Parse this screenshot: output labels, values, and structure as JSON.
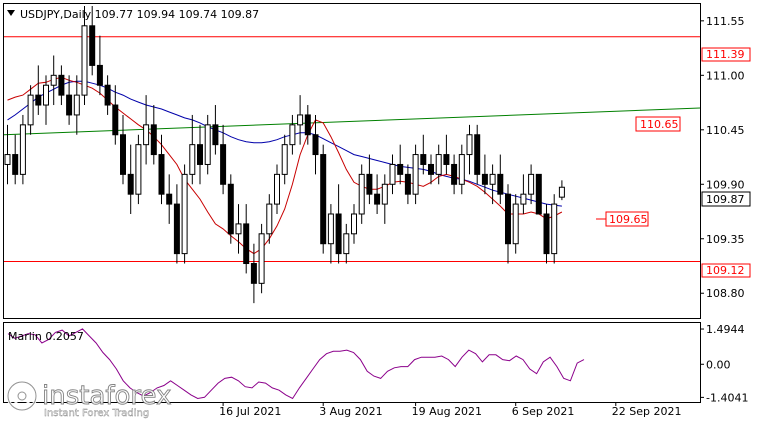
{
  "header": {
    "symbol_line": "USDJPY,Daily  109.77 109.94 109.74 109.87"
  },
  "watermark": {
    "brand": "instaforex",
    "tagline": "Instant Forex Trading"
  },
  "colors": {
    "background": "#ffffff",
    "frame": "#000000",
    "candle_bull": "#ffffff",
    "candle_bear": "#000000",
    "level_line": "#ff0000",
    "ma_fast": "#c80000",
    "ma_mid": "#0000aa",
    "ma_slow": "#008000",
    "marlin": "#8b008b",
    "grid": "#c0c0c0"
  },
  "chart_data": [
    {
      "type": "candlestick",
      "title": "USDJPY,Daily",
      "ohlc_label": "109.77 109.94 109.74 109.87",
      "ylim": [
        108.55,
        111.72
      ],
      "y_ticks": [
        111.55,
        111.0,
        110.45,
        109.9,
        109.35,
        108.8
      ],
      "y_tick_labels": [
        "111.55",
        "111.00",
        "110.45",
        "109.90",
        "109.35",
        "108.80"
      ],
      "x_tick_labels": [
        "16 Jul 2021",
        "3 Aug 2021",
        "19 Aug 2021",
        "6 Sep 2021",
        "22 Sep 2021"
      ],
      "x_tick_bar_index": [
        28,
        41,
        53,
        66,
        79
      ],
      "current_price": "109.87",
      "candles": [
        [
          110.1,
          110.5,
          109.9,
          110.2
        ],
        [
          110.2,
          110.4,
          109.9,
          110.0
        ],
        [
          110.0,
          110.6,
          109.9,
          110.5
        ],
        [
          110.5,
          110.9,
          110.4,
          110.8
        ],
        [
          110.8,
          111.1,
          110.6,
          110.7
        ],
        [
          110.7,
          111.0,
          110.5,
          110.9
        ],
        [
          110.9,
          111.2,
          110.7,
          111.0
        ],
        [
          111.0,
          111.1,
          110.7,
          110.8
        ],
        [
          110.8,
          111.0,
          110.5,
          110.6
        ],
        [
          110.6,
          111.0,
          110.4,
          110.8
        ],
        [
          110.8,
          111.7,
          110.7,
          111.5
        ],
        [
          111.5,
          111.7,
          111.0,
          111.1
        ],
        [
          111.1,
          111.4,
          110.8,
          110.9
        ],
        [
          110.9,
          111.0,
          110.6,
          110.7
        ],
        [
          110.7,
          110.9,
          110.3,
          110.4
        ],
        [
          110.4,
          110.6,
          109.9,
          110.0
        ],
        [
          110.0,
          110.3,
          109.6,
          109.8
        ],
        [
          109.8,
          110.4,
          109.7,
          110.3
        ],
        [
          110.3,
          110.8,
          110.1,
          110.5
        ],
        [
          110.5,
          110.7,
          110.1,
          110.2
        ],
        [
          110.2,
          110.4,
          109.7,
          109.8
        ],
        [
          109.8,
          110.0,
          109.5,
          109.7
        ],
        [
          109.7,
          109.9,
          109.1,
          109.2
        ],
        [
          109.2,
          110.1,
          109.1,
          110.0
        ],
        [
          110.0,
          110.6,
          109.9,
          110.3
        ],
        [
          110.3,
          110.5,
          109.9,
          110.1
        ],
        [
          110.1,
          110.6,
          110.0,
          110.5
        ],
        [
          110.5,
          110.7,
          110.2,
          110.3
        ],
        [
          110.3,
          110.5,
          109.8,
          109.9
        ],
        [
          109.9,
          110.0,
          109.3,
          109.4
        ],
        [
          109.4,
          109.7,
          109.2,
          109.5
        ],
        [
          109.5,
          109.7,
          109.0,
          109.1
        ],
        [
          109.1,
          109.3,
          108.7,
          108.9
        ],
        [
          108.9,
          109.5,
          108.8,
          109.4
        ],
        [
          109.4,
          109.8,
          109.3,
          109.7
        ],
        [
          109.7,
          110.1,
          109.6,
          110.0
        ],
        [
          110.0,
          110.4,
          109.9,
          110.3
        ],
        [
          110.3,
          110.6,
          110.2,
          110.5
        ],
        [
          110.5,
          110.8,
          110.3,
          110.6
        ],
        [
          110.6,
          110.7,
          110.3,
          110.4
        ],
        [
          110.4,
          110.6,
          110.0,
          110.2
        ],
        [
          110.2,
          110.3,
          109.2,
          109.3
        ],
        [
          109.3,
          109.7,
          109.1,
          109.6
        ],
        [
          109.6,
          109.9,
          109.1,
          109.2
        ],
        [
          109.2,
          109.5,
          109.1,
          109.4
        ],
        [
          109.4,
          109.7,
          109.3,
          109.6
        ],
        [
          109.6,
          110.1,
          109.5,
          110.0
        ],
        [
          110.0,
          110.2,
          109.7,
          109.8
        ],
        [
          109.8,
          110.0,
          109.6,
          109.7
        ],
        [
          109.7,
          110.0,
          109.5,
          109.9
        ],
        [
          109.9,
          110.2,
          109.8,
          110.1
        ],
        [
          110.1,
          110.3,
          109.9,
          110.0
        ],
        [
          110.0,
          110.1,
          109.7,
          109.8
        ],
        [
          109.8,
          110.3,
          109.7,
          110.2
        ],
        [
          110.2,
          110.4,
          110.0,
          110.1
        ],
        [
          110.1,
          110.2,
          109.9,
          110.0
        ],
        [
          110.0,
          110.3,
          109.9,
          110.2
        ],
        [
          110.2,
          110.4,
          110.0,
          110.1
        ],
        [
          110.1,
          110.2,
          109.8,
          109.9
        ],
        [
          109.9,
          110.3,
          109.8,
          110.2
        ],
        [
          110.2,
          110.5,
          110.0,
          110.4
        ],
        [
          110.4,
          110.5,
          109.9,
          110.0
        ],
        [
          110.0,
          110.2,
          109.8,
          109.9
        ],
        [
          109.9,
          110.1,
          109.7,
          110.0
        ],
        [
          110.0,
          110.2,
          109.7,
          109.8
        ],
        [
          109.8,
          109.9,
          109.1,
          109.3
        ],
        [
          109.3,
          109.8,
          109.2,
          109.7
        ],
        [
          109.7,
          110.0,
          109.6,
          109.8
        ],
        [
          109.8,
          110.1,
          109.7,
          110.0
        ],
        [
          110.0,
          110.0,
          109.6,
          109.6
        ],
        [
          109.6,
          109.7,
          109.1,
          109.2
        ],
        [
          109.2,
          109.8,
          109.1,
          109.7
        ],
        [
          109.77,
          109.94,
          109.74,
          109.87
        ]
      ],
      "series": [
        {
          "values": [
            110.75,
            110.78,
            110.8,
            110.86,
            110.92,
            110.93,
            110.96,
            110.98,
            110.95,
            110.93,
            110.9,
            110.87,
            110.82,
            110.75,
            110.68,
            110.62,
            110.56,
            110.5,
            110.45,
            110.38,
            110.3,
            110.2,
            110.1,
            109.95,
            109.85,
            109.75,
            109.62,
            109.5,
            109.45,
            109.38,
            109.32,
            109.25,
            109.2,
            109.25,
            109.35,
            109.48,
            109.65,
            109.9,
            110.2,
            110.4,
            110.55,
            110.52,
            110.38,
            110.22,
            110.05,
            109.92,
            109.88,
            109.85,
            109.85,
            109.88,
            109.92,
            109.93,
            109.92,
            109.9,
            109.88,
            109.92,
            109.98,
            110.0,
            109.98,
            109.95,
            109.92,
            109.88,
            109.82,
            109.75,
            109.68,
            109.6,
            109.6,
            109.6,
            109.62,
            109.6,
            109.55,
            109.58,
            109.62
          ]
        },
        {
          "values": [
            110.55,
            110.6,
            110.66,
            110.72,
            110.78,
            110.82,
            110.86,
            110.9,
            110.93,
            110.94,
            110.94,
            110.92,
            110.9,
            110.87,
            110.83,
            110.8,
            110.76,
            110.73,
            110.7,
            110.68,
            110.66,
            110.63,
            110.6,
            110.57,
            110.55,
            110.52,
            110.48,
            110.45,
            110.42,
            110.38,
            110.35,
            110.33,
            110.32,
            110.32,
            110.33,
            110.35,
            110.38,
            110.4,
            110.42,
            110.42,
            110.4,
            110.36,
            110.32,
            110.28,
            110.24,
            110.2,
            110.18,
            110.16,
            110.14,
            110.12,
            110.1,
            110.08,
            110.07,
            110.06,
            110.05,
            110.03,
            110.0,
            109.98,
            109.96,
            109.95,
            109.93,
            109.9,
            109.87,
            109.84,
            109.82,
            109.8,
            109.78,
            109.76,
            109.74,
            109.72,
            109.7,
            109.69,
            109.68
          ]
        },
        {
          "values": [
            110.4,
            110.67
          ]
        },
        {
          "values": [
            111.39,
            109.12
          ]
        }
      ],
      "level_labels": [
        "111.39",
        "110.65",
        "109.65",
        "109.12"
      ]
    },
    {
      "type": "line",
      "title": "Marlin 0.2057",
      "ylim": [
        -1.6,
        1.75
      ],
      "y_ticks": [
        1.4944,
        0.0,
        -1.4041
      ],
      "y_tick_labels": [
        "1.4944",
        "0.00",
        "-1.4041"
      ],
      "series": [
        {
          "name": "Marlin 0.2057",
          "values": [
            1.3,
            1.1,
            1.2,
            1.3,
            1.25,
            0.9,
            1.05,
            1.35,
            1.45,
            1.2,
            1.35,
            1.5,
            1.2,
            0.9,
            0.5,
            0.2,
            -0.2,
            -0.7,
            -1.0,
            -1.2,
            -1.35,
            -1.2,
            -1.0,
            -0.9,
            -0.7,
            -0.9,
            -1.1,
            -1.3,
            -1.45,
            -1.4,
            -1.1,
            -0.8,
            -0.6,
            -0.55,
            -0.7,
            -0.95,
            -1.0,
            -0.75,
            -0.8,
            -1.0,
            -1.1,
            -1.3,
            -1.45,
            -1.0,
            -0.6,
            -0.2,
            0.2,
            0.45,
            0.55,
            0.55,
            0.6,
            0.5,
            0.2,
            -0.3,
            -0.5,
            -0.6,
            -0.3,
            -0.15,
            -0.1,
            -0.1,
            0.2,
            0.3,
            0.3,
            0.3,
            0.35,
            0.2,
            -0.1,
            0.3,
            0.6,
            0.45,
            0.1,
            0.4,
            0.4,
            0.2,
            0.15,
            0.35,
            0.2,
            -0.2,
            -0.4,
            0.1,
            0.3,
            -0.1,
            -0.6,
            -0.7,
            0.05,
            0.2
          ]
        }
      ]
    }
  ]
}
